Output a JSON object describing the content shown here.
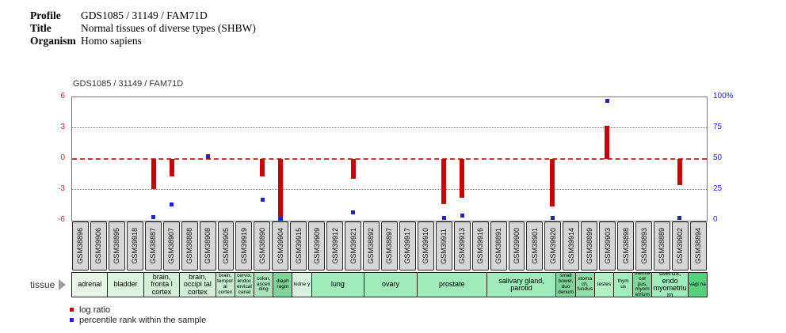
{
  "header": {
    "rows": [
      {
        "label": "Profile",
        "value": "GDS1085 / 31149 / FAM71D"
      },
      {
        "label": "Title",
        "value": "Normal tissues of diverse types (SHBW)"
      },
      {
        "label": "Organism",
        "value": "Homo sapiens"
      }
    ]
  },
  "chart": {
    "title": "GDS1085 / 31149 / FAM71D",
    "left_axis": {
      "ticks": [
        "6",
        "3",
        "0",
        "-3",
        "-6"
      ],
      "color": "#cc2222"
    },
    "right_axis": {
      "ticks": [
        "100%",
        "75",
        "50",
        "25",
        "0"
      ],
      "color": "#2222cc"
    }
  },
  "chart_data": {
    "type": "bar",
    "title": "GDS1085 / 31149 / FAM71D",
    "categories": [
      "GSM38896",
      "GSM39906",
      "GSM38895",
      "GSM39918",
      "GSM38887",
      "GSM38907",
      "GSM38888",
      "GSM38908",
      "GSM38905",
      "GSM39919",
      "GSM38890",
      "GSM39904",
      "GSM39915",
      "GSM39909",
      "GSM39912",
      "GSM39921",
      "GSM38892",
      "GSM38897",
      "GSM39917",
      "GSM39910",
      "GSM39911",
      "GSM39913",
      "GSM39916",
      "GSM38891",
      "GSM39900",
      "GSM38901",
      "GSM39920",
      "GSM39914",
      "GSM38899",
      "GSM39903",
      "GSM38898",
      "GSM38893",
      "GSM38889",
      "GSM39902",
      "GSM38894"
    ],
    "series": [
      {
        "name": "log ratio",
        "color": "#cc0000",
        "axis": "left",
        "values": [
          null,
          null,
          null,
          null,
          -2.9,
          -1.7,
          null,
          0.1,
          null,
          null,
          -1.7,
          -6.0,
          null,
          null,
          null,
          -1.9,
          null,
          null,
          null,
          null,
          -4.4,
          -3.8,
          null,
          null,
          null,
          null,
          -4.6,
          null,
          null,
          3.2,
          null,
          null,
          null,
          -2.5,
          null
        ]
      },
      {
        "name": "percentile rank within the sample",
        "color": "#2222cc",
        "axis": "right",
        "values": [
          null,
          null,
          null,
          null,
          3,
          13,
          null,
          52,
          null,
          null,
          17,
          1,
          null,
          null,
          null,
          7,
          null,
          null,
          null,
          null,
          2,
          4,
          null,
          null,
          null,
          null,
          2,
          null,
          null,
          97,
          null,
          null,
          null,
          2,
          null
        ]
      }
    ],
    "ylim": [
      -6,
      6
    ],
    "y2lim": [
      0,
      100
    ],
    "gridlines": {
      "dotted_y": [
        3,
        -3
      ],
      "zero_line_y": 0,
      "zero_line_color": "#cc3333"
    },
    "legend_position": "bottom-left"
  },
  "tissue": {
    "axis_label": "tissue",
    "groups": [
      {
        "name": "adrenal",
        "span": 2,
        "color": "#e6f7e6"
      },
      {
        "name": "bladder",
        "span": 2,
        "color": "#dcf3de"
      },
      {
        "name": "brain, fronta l cortex",
        "span": 2,
        "color": "#d2efd6"
      },
      {
        "name": "brain, occipi tal cortex",
        "span": 2,
        "color": "#d2efd6"
      },
      {
        "name": "brain, temporal cortex",
        "span": 1,
        "color": "#c6ebcc"
      },
      {
        "name": "cervix, endocervical canal",
        "span": 1,
        "color": "#b6e7c2"
      },
      {
        "name": "colon, ascen ding",
        "span": 1,
        "color": "#aae4b8"
      },
      {
        "name": "diaph ragm",
        "span": 1,
        "color": "#7fd49a"
      },
      {
        "name": "kidne y",
        "span": 1,
        "color": "#d8f1de"
      },
      {
        "name": "lung",
        "span": 3,
        "color": "#9fecba"
      },
      {
        "name": "ovary",
        "span": 3,
        "color": "#9fecba"
      },
      {
        "name": "prostate",
        "span": 4,
        "color": "#9fecba"
      },
      {
        "name": "salivary gland, parotid",
        "span": 4,
        "color": "#9fecba"
      },
      {
        "name": "small bowel, duo denum",
        "span": 1,
        "color": "#7fd49a"
      },
      {
        "name": "stoma ch, fundus",
        "span": 1,
        "color": "#8fe0a6"
      },
      {
        "name": "testes",
        "span": 1,
        "color": "#b2f0c4"
      },
      {
        "name": "thym us",
        "span": 1,
        "color": "#a2ecbc"
      },
      {
        "name": "uterine cor pus, myom etrium",
        "span": 1,
        "color": "#7fd49a"
      },
      {
        "name": "uterus, endo myometrium",
        "span": 2,
        "color": "#9fecba"
      },
      {
        "name": "vagi na",
        "span": 1,
        "color": "#55d17e"
      }
    ]
  },
  "legend": {
    "items": [
      {
        "label": "log ratio",
        "color": "#cc0000"
      },
      {
        "label": "percentile rank within the sample",
        "color": "#2222cc"
      }
    ]
  }
}
